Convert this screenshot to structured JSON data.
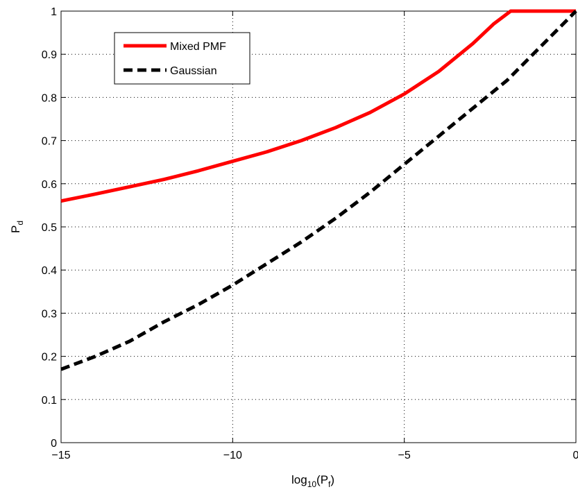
{
  "chart_data": {
    "type": "line",
    "xlabel": {
      "base": "log",
      "sub": "10",
      "open": "(P",
      "psub": "f",
      "close": ")"
    },
    "ylabel": {
      "main": "P",
      "sub": "d"
    },
    "xlim": [
      -15,
      0
    ],
    "ylim": [
      0,
      1
    ],
    "x_ticks": [
      -15,
      -10,
      -5,
      0
    ],
    "x_tick_labels": [
      "−15",
      "−10",
      "−5",
      "0"
    ],
    "y_ticks": [
      0,
      0.1,
      0.2,
      0.3,
      0.4,
      0.5,
      0.6,
      0.7,
      0.8,
      0.9,
      1
    ],
    "y_tick_labels": [
      "0",
      "0.1",
      "0.2",
      "0.3",
      "0.4",
      "0.5",
      "0.6",
      "0.7",
      "0.8",
      "0.9",
      "1"
    ],
    "grid": true,
    "legend_position": "top-left",
    "series": [
      {
        "name": "Mixed PMF",
        "color": "#ff0000",
        "style": "solid",
        "x": [
          -15,
          -14,
          -13,
          -12,
          -11,
          -10,
          -9,
          -8,
          -7,
          -6,
          -5,
          -4,
          -3,
          -2.4,
          -1.9,
          -1.5,
          -1,
          -0.5,
          0
        ],
        "y": [
          0.56,
          0.576,
          0.593,
          0.61,
          0.63,
          0.652,
          0.674,
          0.7,
          0.73,
          0.765,
          0.808,
          0.86,
          0.925,
          0.97,
          1.0,
          1.0,
          1.0,
          1.0,
          1.0
        ]
      },
      {
        "name": "Gaussian",
        "color": "#000000",
        "style": "dashed",
        "x": [
          -15,
          -14,
          -13,
          -12,
          -11,
          -10,
          -9,
          -8,
          -7,
          -6,
          -5,
          -4,
          -3,
          -2,
          -1,
          0
        ],
        "y": [
          0.17,
          0.2,
          0.235,
          0.28,
          0.32,
          0.365,
          0.415,
          0.465,
          0.52,
          0.58,
          0.645,
          0.71,
          0.775,
          0.84,
          0.92,
          1.0
        ]
      }
    ]
  }
}
